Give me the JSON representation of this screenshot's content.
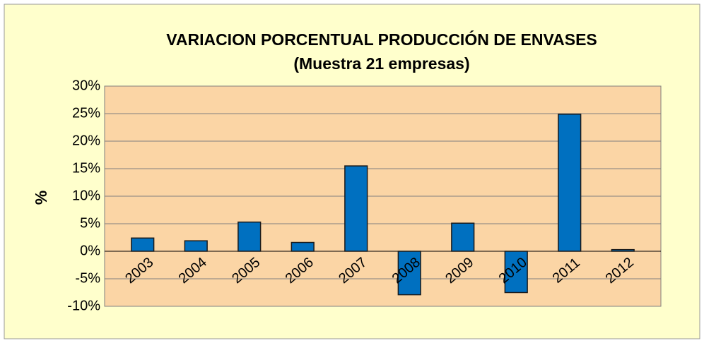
{
  "chart_data": {
    "type": "bar",
    "title": "VARIACION PORCENTUAL PRODUCCIÓN DE ENVASES",
    "subtitle": "(Muestra 21 empresas)",
    "y_label": "%",
    "categories": [
      "2003",
      "2004",
      "2005",
      "2006",
      "2007",
      "2008",
      "2009",
      "2010",
      "2011",
      "2012"
    ],
    "values": [
      2.4,
      1.9,
      5.3,
      1.6,
      15.5,
      -7.9,
      5.1,
      -7.5,
      24.9,
      0.3
    ],
    "color": "#0070c0",
    "ylim": [
      -10,
      30
    ],
    "yticks": [
      {
        "value": -10,
        "label": "-10%"
      },
      {
        "value": -5,
        "label": "-5%"
      },
      {
        "value": 0,
        "label": "0%"
      },
      {
        "value": 5,
        "label": "5%"
      },
      {
        "value": 10,
        "label": "10%"
      },
      {
        "value": 15,
        "label": "15%"
      },
      {
        "value": 20,
        "label": "20%"
      },
      {
        "value": 25,
        "label": "25%"
      },
      {
        "value": 30,
        "label": "30%"
      }
    ],
    "grid": true
  }
}
